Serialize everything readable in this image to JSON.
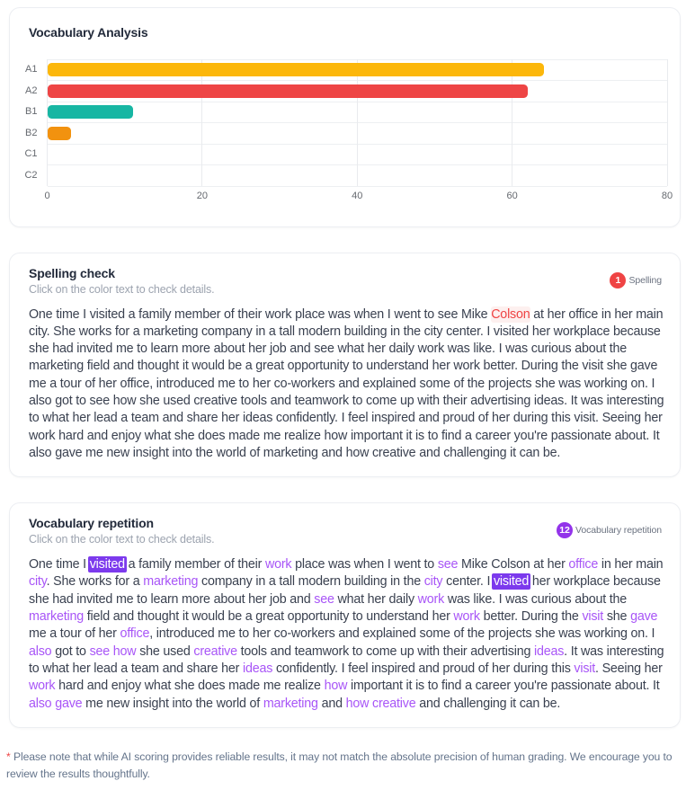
{
  "chart_card": {
    "title": "Vocabulary Analysis",
    "chart_data": {
      "type": "bar",
      "orientation": "horizontal",
      "title": "Vocabulary Analysis",
      "categories": [
        "A1",
        "A2",
        "B1",
        "B2",
        "C1",
        "C2"
      ],
      "values": [
        64,
        62,
        11,
        3,
        0,
        0
      ],
      "bar_colors": [
        "#fcb70b",
        "#ee4545",
        "#17b6a3",
        "#f2920f",
        "#17b6a3",
        "#f2920f"
      ],
      "xticks": [
        0,
        20,
        40,
        60,
        80
      ],
      "xlim": [
        0,
        80
      ],
      "xlabel": "",
      "ylabel": "",
      "grid": true,
      "legend": false
    }
  },
  "spelling_card": {
    "title": "Spelling check",
    "subtitle": "Click on the color text to check details.",
    "badge": {
      "count": "1",
      "label": "Spelling",
      "color": "#ef4444"
    },
    "essay_segments": [
      {
        "text": "One time I visited a family member of their work place was when I went to see Mike ",
        "type": "normal"
      },
      {
        "text": "Colson",
        "type": "error"
      },
      {
        "text": " at her office in her main city. She works for a marketing company in a tall modern building in the city center. I visited her workplace because she had invited me to learn more about her job and see what her daily work was like. I was curious about the marketing field and thought it would be a great opportunity to understand her work better. During the visit she gave me a tour of her office, introduced me to her co-workers and explained some of the projects she was working on. I also got to see how she used creative tools and teamwork to come up with their advertising ideas. It was interesting to what her lead a team and share her ideas confidently. I feel inspired and proud of her during this visit. Seeing her work hard and enjoy what she does made me realize how important it is to find a career you're passionate about. It also gave me new insight into the world of marketing and how creative and challenging it can be.",
        "type": "normal"
      }
    ]
  },
  "repetition_card": {
    "title": "Vocabulary repetition",
    "subtitle": "Click on the color text to check details.",
    "badge": {
      "count": "12",
      "label": "Vocabulary repetition",
      "color": "#9333ea"
    },
    "essay_segments": [
      {
        "text": "One time I ",
        "type": "normal"
      },
      {
        "text": "visited",
        "type": "highlight"
      },
      {
        "text": " a family member of their ",
        "type": "normal"
      },
      {
        "text": "work",
        "type": "repeat"
      },
      {
        "text": " place was when I went to ",
        "type": "normal"
      },
      {
        "text": "see",
        "type": "repeat"
      },
      {
        "text": " Mike Colson at her ",
        "type": "normal"
      },
      {
        "text": "office",
        "type": "repeat"
      },
      {
        "text": " in her main ",
        "type": "normal"
      },
      {
        "text": "city",
        "type": "repeat"
      },
      {
        "text": ". She works for a ",
        "type": "normal"
      },
      {
        "text": "marketing",
        "type": "repeat"
      },
      {
        "text": " company in a tall modern building in the ",
        "type": "normal"
      },
      {
        "text": "city",
        "type": "repeat"
      },
      {
        "text": " center. I ",
        "type": "normal"
      },
      {
        "text": "visited",
        "type": "highlight"
      },
      {
        "text": " her workplace because she had invited me to learn more about her job and ",
        "type": "normal"
      },
      {
        "text": "see",
        "type": "repeat"
      },
      {
        "text": " what her daily ",
        "type": "normal"
      },
      {
        "text": "work",
        "type": "repeat"
      },
      {
        "text": " was like. I was curious about the ",
        "type": "normal"
      },
      {
        "text": "marketing",
        "type": "repeat"
      },
      {
        "text": " field and thought it would be a great opportunity to understand her ",
        "type": "normal"
      },
      {
        "text": "work",
        "type": "repeat"
      },
      {
        "text": " better. During the ",
        "type": "normal"
      },
      {
        "text": "visit",
        "type": "repeat"
      },
      {
        "text": " she ",
        "type": "normal"
      },
      {
        "text": "gave",
        "type": "repeat"
      },
      {
        "text": " me a tour of her ",
        "type": "normal"
      },
      {
        "text": "office",
        "type": "repeat"
      },
      {
        "text": ", introduced me to her co-workers and explained some of the projects she was working on. I ",
        "type": "normal"
      },
      {
        "text": "also",
        "type": "repeat"
      },
      {
        "text": " got to ",
        "type": "normal"
      },
      {
        "text": "see how",
        "type": "repeat"
      },
      {
        "text": " she used ",
        "type": "normal"
      },
      {
        "text": "creative",
        "type": "repeat"
      },
      {
        "text": " tools and teamwork to come up with their advertising ",
        "type": "normal"
      },
      {
        "text": "ideas",
        "type": "repeat"
      },
      {
        "text": ". It was interesting to what her lead a team and share her ",
        "type": "normal"
      },
      {
        "text": "ideas",
        "type": "repeat"
      },
      {
        "text": " confidently. I feel inspired and proud of her during this ",
        "type": "normal"
      },
      {
        "text": "visit",
        "type": "repeat"
      },
      {
        "text": ". Seeing her ",
        "type": "normal"
      },
      {
        "text": "work",
        "type": "repeat"
      },
      {
        "text": " hard and enjoy what she does made me realize ",
        "type": "normal"
      },
      {
        "text": "how",
        "type": "repeat"
      },
      {
        "text": " important it is to find a career you're passionate about. It ",
        "type": "normal"
      },
      {
        "text": "also gave",
        "type": "repeat"
      },
      {
        "text": " me new insight into the world of ",
        "type": "normal"
      },
      {
        "text": "marketing",
        "type": "repeat"
      },
      {
        "text": " and ",
        "type": "normal"
      },
      {
        "text": "how creative",
        "type": "repeat"
      },
      {
        "text": " and challenging it can be.",
        "type": "normal"
      }
    ]
  },
  "footnote": {
    "marker": "*",
    "text": " Please note that while AI scoring provides reliable results, it may not match the absolute precision of human grading. We encourage you to review the results thoughtfully."
  },
  "colors": {
    "repeat_text": "#a855f7",
    "highlight_background": "#7c3aed",
    "error_text": "#ef4444",
    "body_text": "#3a4150",
    "grid_line": "#e9ebee"
  }
}
